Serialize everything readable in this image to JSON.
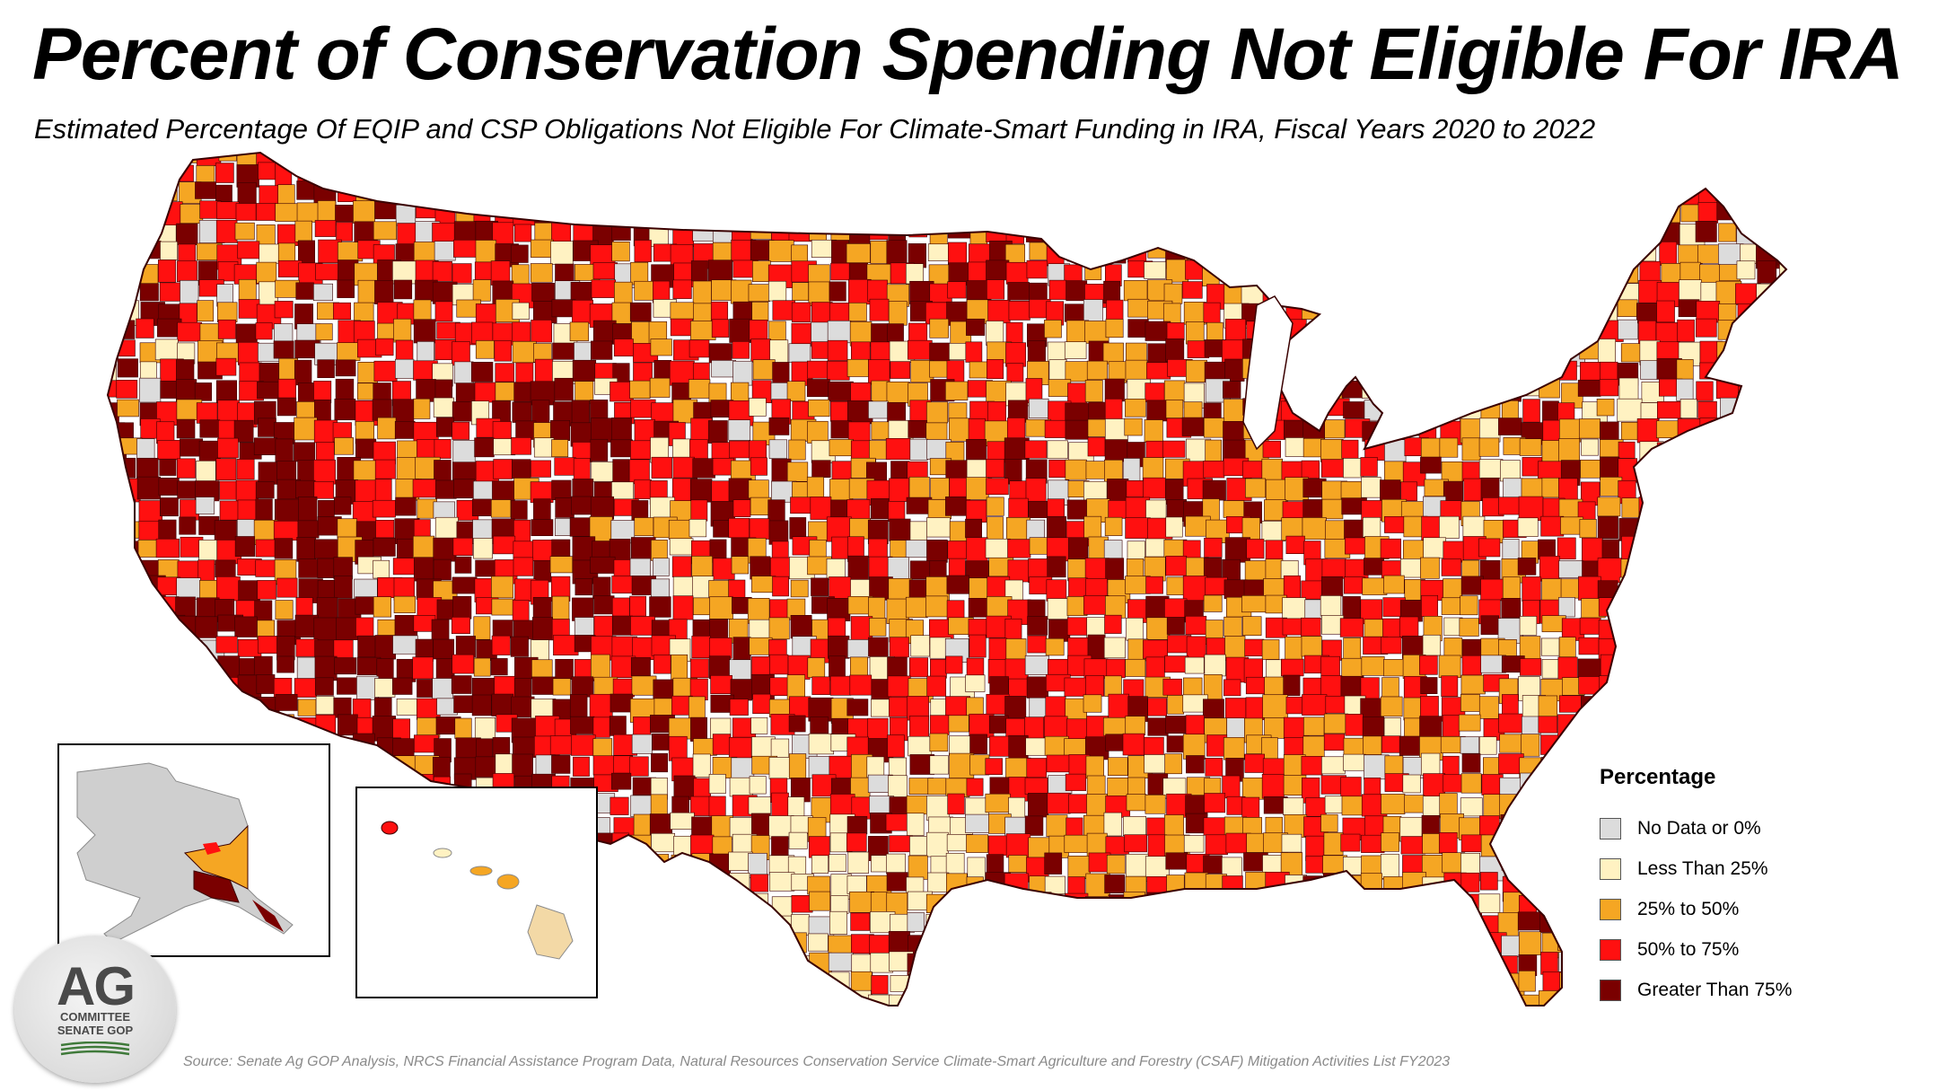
{
  "title": "Percent of Conservation Spending Not Eligible For IRA",
  "subtitle": "Estimated Percentage Of EQIP and CSP Obligations Not Eligible For Climate-Smart Funding in IRA, Fiscal Years 2020 to 2022",
  "legend": {
    "title": "Percentage",
    "items": [
      {
        "label": "No Data or 0%",
        "color": "#dcdcdc"
      },
      {
        "label": "Less Than 25%",
        "color": "#fff2c2"
      },
      {
        "label": "25% to 50%",
        "color": "#f5a623"
      },
      {
        "label": "50% to 75%",
        "color": "#ff1010"
      },
      {
        "label": "Greater Than 75%",
        "color": "#7a0000"
      }
    ]
  },
  "source": "Source: Senate Ag GOP Analysis, NRCS Financial Assistance Program Data, Natural Resources Conservation Service Climate-Smart Agriculture and Forestry (CSAF) Mitigation Activities List FY2023",
  "logo": {
    "big": "AG",
    "line1": "COMMITTEE",
    "line2": "SENATE GOP"
  },
  "colors": {
    "border": "#3a0000"
  }
}
